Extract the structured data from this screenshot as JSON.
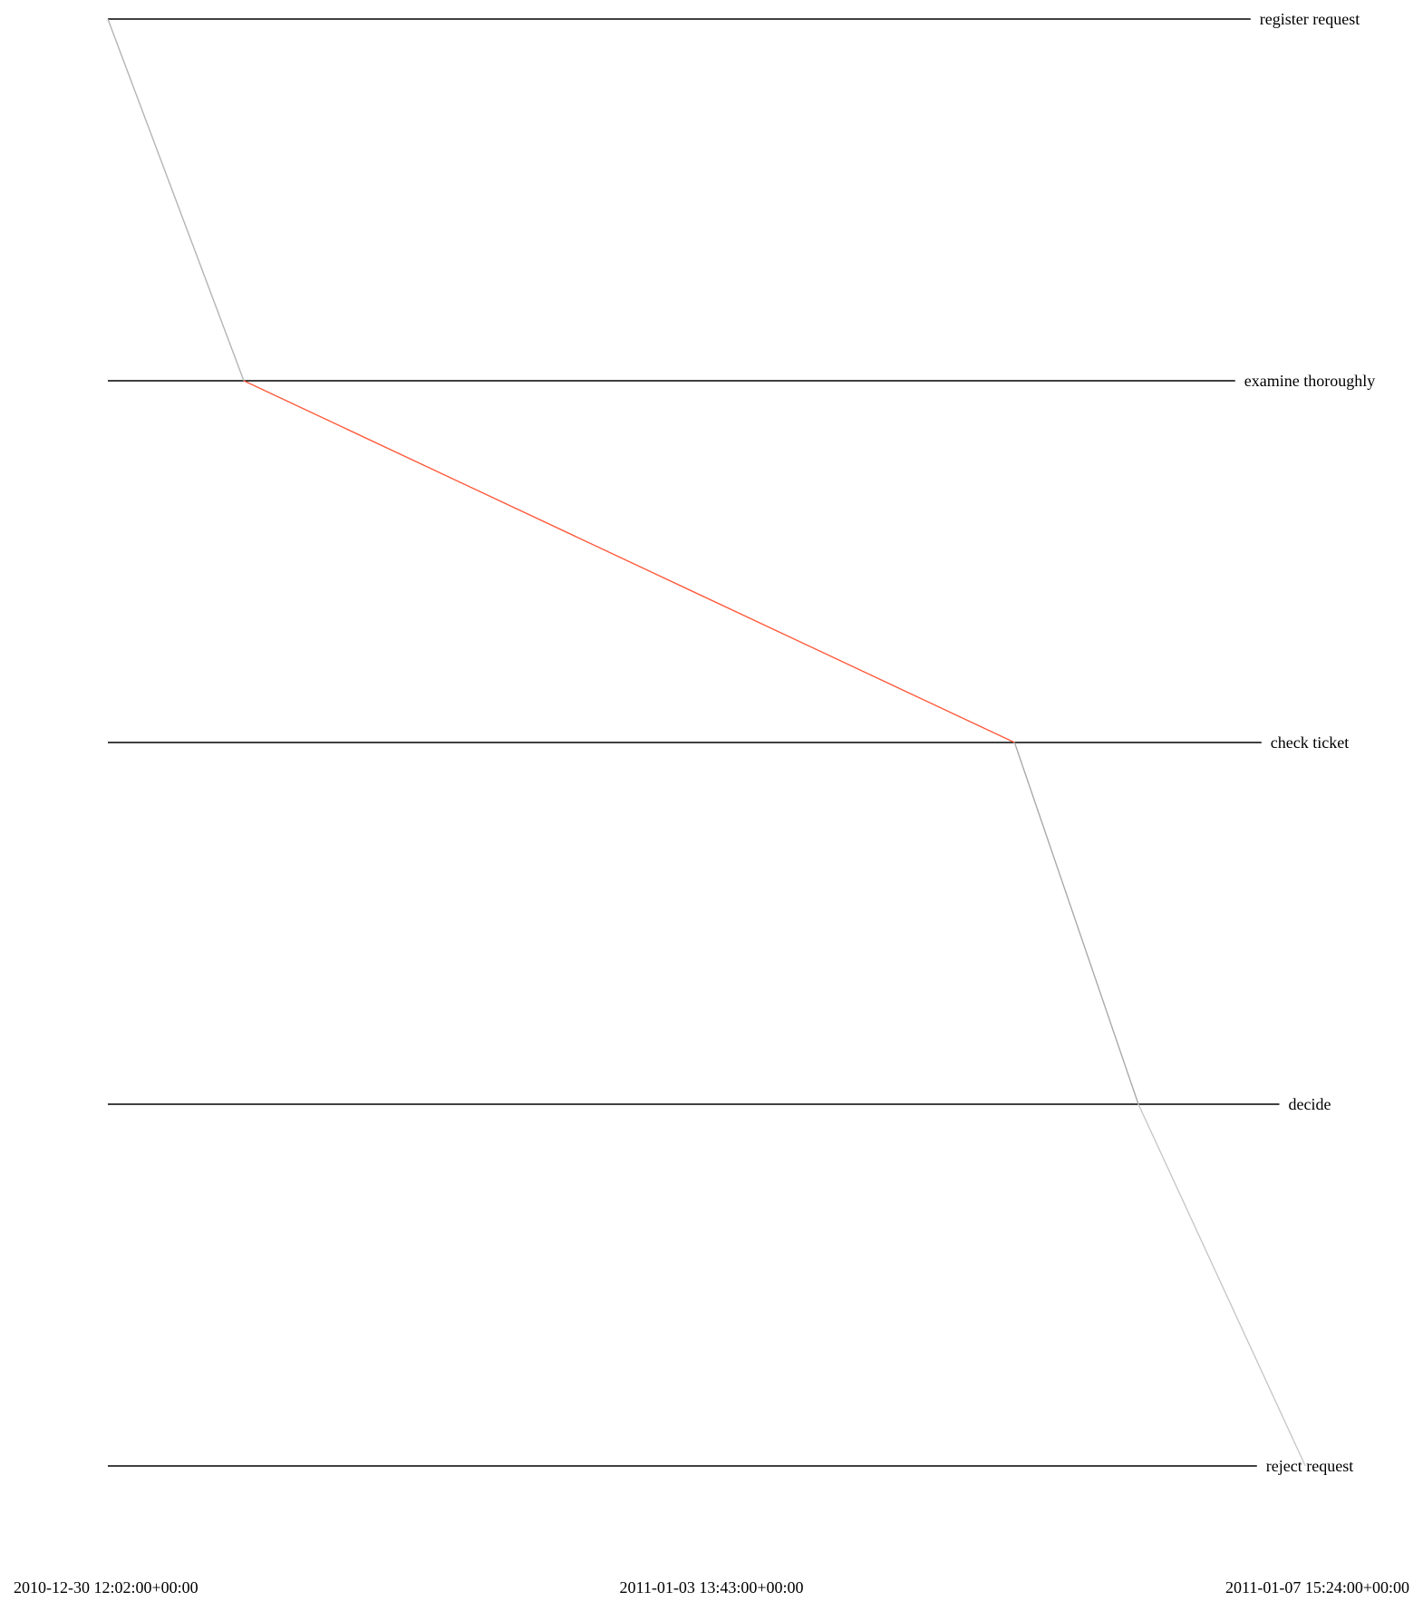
{
  "chart_data": {
    "type": "line",
    "title": "",
    "xlabel": "",
    "ylabel": "",
    "x_axis": {
      "scale": "time",
      "min": "2010-12-30 12:02:00+00:00",
      "max": "2011-01-07 15:24:00+00:00",
      "tick_labels": [
        "2010-12-30 12:02:00+00:00",
        "2011-01-03 13:43:00+00:00",
        "2011-01-07 15:24:00+00:00"
      ]
    },
    "activities": [
      "register request",
      "examine thoroughly",
      "check ticket",
      "decide",
      "reject request"
    ],
    "events": [
      {
        "activity": "register request",
        "timestamp": "2010-12-30 12:02:00+00:00"
      },
      {
        "activity": "examine thoroughly",
        "timestamp": "2010-12-31 10:06:00+00:00"
      },
      {
        "activity": "check ticket",
        "timestamp": "2011-01-05 15:12:00+00:00"
      },
      {
        "activity": "decide",
        "timestamp": "2011-01-06 11:18:00+00:00"
      },
      {
        "activity": "reject request",
        "timestamp": "2011-01-07 14:24:00+00:00"
      }
    ],
    "segment_colors": [
      "#b4b4b4",
      "#ff5a3c",
      "#aaaaaa",
      "#c8c8c8"
    ],
    "grid": false,
    "legend": "none"
  }
}
